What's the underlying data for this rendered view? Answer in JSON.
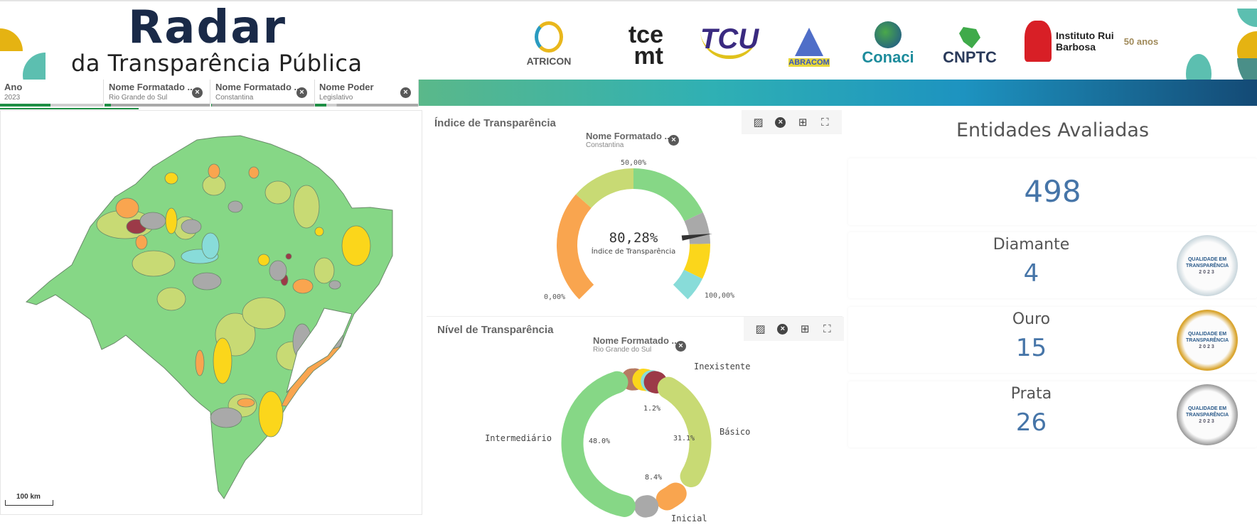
{
  "header": {
    "brand_title": "Radar",
    "brand_subtitle": "da Transparência Pública",
    "logos": [
      "ATRICON",
      "tce mt",
      "TCU",
      "ABRACOM",
      "Conaci",
      "CNPTC",
      "Instituto Rui Barbosa",
      "50 anos"
    ]
  },
  "filters": [
    {
      "title": "Ano",
      "value": "2023"
    },
    {
      "title": "Nome Formatado ...",
      "value": "Rio Grande do Sul"
    },
    {
      "title": "Nome Formatado ...",
      "value": "Constantina"
    },
    {
      "title": "Nome Poder",
      "value": "Legislativo"
    }
  ],
  "map": {
    "scale_label": "100 km",
    "colors": {
      "intermediario": "#86d786",
      "basico": "#c8da74",
      "inicial": "#f9a54f",
      "sem_dado": "#a9a9a9",
      "yellow": "#fbd61b",
      "cyan": "#88dcd9",
      "inexistente": "#9c3a48"
    }
  },
  "gauge_panel": {
    "title": "Índice de Transparência",
    "chip_title": "Nome Formatado ...",
    "chip_value": "Constantina",
    "tools": [
      "image-icon",
      "close-icon",
      "table-icon",
      "fullscreen-icon"
    ]
  },
  "donut_panel": {
    "title": "Nível de Transparência",
    "chip_title": "Nome Formatado ...",
    "chip_value": "Rio Grande do Sul",
    "tools": [
      "image-icon",
      "close-icon",
      "table-icon",
      "fullscreen-icon"
    ]
  },
  "chart_data": [
    {
      "type": "gauge",
      "value": 80.28,
      "value_label": "80,28%",
      "measure_label": "Índice de Transparência",
      "range": [
        0,
        100
      ],
      "tick_labels": {
        "min": "0,00%",
        "mid": "50,00%",
        "max": "100,00%"
      },
      "bands": [
        {
          "from": 0,
          "to": 32,
          "color": "#f9a54f"
        },
        {
          "from": 32,
          "to": 50,
          "color": "#c8da74"
        },
        {
          "from": 50,
          "to": 74,
          "color": "#86d786"
        },
        {
          "from": 74,
          "to": 83,
          "color": "#a9a9a9"
        },
        {
          "from": 83,
          "to": 93,
          "color": "#fbd61b"
        },
        {
          "from": 93,
          "to": 100,
          "color": "#88dcd9"
        }
      ]
    },
    {
      "type": "pie",
      "donut": true,
      "slices": [
        {
          "label": "",
          "value": 2.4,
          "value_label": "",
          "color": "#b77a62"
        },
        {
          "label": "",
          "value": 3.2,
          "value_label": "",
          "color": "#fbd61b"
        },
        {
          "label": "",
          "value": 0.6,
          "value_label": "",
          "color": "#88dcd9"
        },
        {
          "label": "Inexistente",
          "value": 1.2,
          "value_label": "1.2%",
          "color": "#9c3a48"
        },
        {
          "label": "Básico",
          "value": 31.1,
          "value_label": "31.1%",
          "color": "#c8da74"
        },
        {
          "label": "Inicial",
          "value": 8.4,
          "value_label": "8.4%",
          "color": "#f9a54f"
        },
        {
          "label": "",
          "value": 5.1,
          "value_label": "",
          "color": "#a9a9a9"
        },
        {
          "label": "Intermediário",
          "value": 48.0,
          "value_label": "48.0%",
          "color": "#86d786"
        }
      ]
    }
  ],
  "summary": {
    "title": "Entidades Avaliadas",
    "total": "498",
    "cards": [
      {
        "label": "Diamante",
        "count": "4",
        "medal": "diamond",
        "medal_text": "QUALIDADE EM TRANSPARÊNCIA",
        "medal_year": "2023"
      },
      {
        "label": "Ouro",
        "count": "15",
        "medal": "gold",
        "medal_text": "QUALIDADE EM TRANSPARÊNCIA",
        "medal_year": "2023"
      },
      {
        "label": "Prata",
        "count": "26",
        "medal": "silver",
        "medal_text": "QUALIDADE EM TRANSPARÊNCIA",
        "medal_year": "2023"
      }
    ]
  }
}
